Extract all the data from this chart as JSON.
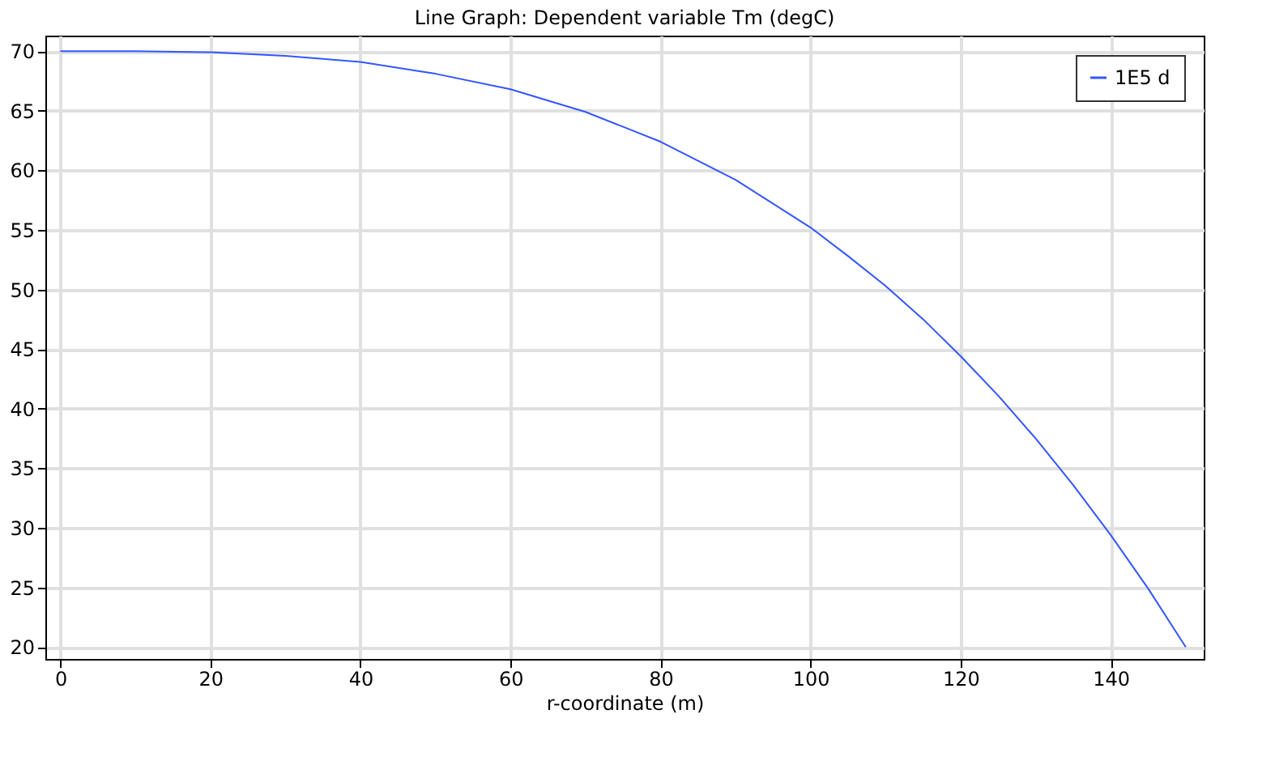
{
  "chart_data": {
    "type": "line",
    "title": "Line Graph: Dependent variable Tm (degC)",
    "xlabel": "r-coordinate (m)",
    "x": [
      0,
      10,
      20,
      30,
      40,
      50,
      60,
      70,
      80,
      90,
      100,
      105,
      110,
      115,
      120,
      125,
      130,
      135,
      140,
      145,
      150
    ],
    "series": [
      {
        "name": "1E5 d",
        "color": "#3355ff",
        "values": [
          70,
          70,
          69.9,
          69.6,
          69.1,
          68.1,
          66.8,
          64.9,
          62.4,
          59.2,
          55.2,
          52.8,
          50.3,
          47.5,
          44.4,
          41.1,
          37.5,
          33.6,
          29.4,
          24.9,
          20
        ]
      }
    ],
    "xlim": [
      -2,
      152.4
    ],
    "xticks": [
      0,
      20,
      40,
      60,
      80,
      100,
      120,
      140
    ],
    "ylim": [
      19,
      71.3
    ],
    "yticks": [
      20,
      25,
      30,
      35,
      40,
      45,
      50,
      55,
      60,
      65,
      70
    ],
    "grid": true,
    "legend": "top right",
    "line_style": "solid",
    "marker": "none"
  }
}
